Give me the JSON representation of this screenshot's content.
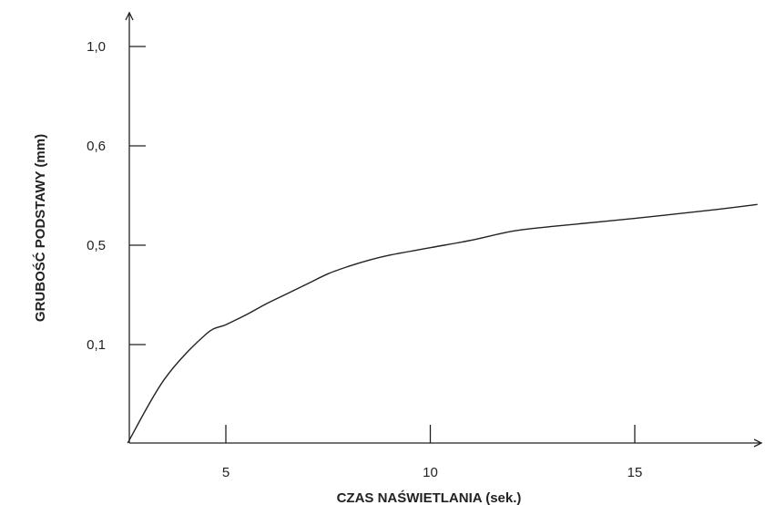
{
  "chart_data": {
    "type": "line",
    "title": "",
    "xlabel": "CZAS NAŚWIETLANIA (sek.)",
    "ylabel": "GRUBOŚĆ PODSTAWY (mm)",
    "x_ticks": [
      "5",
      "10",
      "15"
    ],
    "y_ticks": [
      "0,1",
      "0,5",
      "0,6",
      "1,0"
    ],
    "x_tick_values": [
      5,
      10,
      15
    ],
    "y_tick_values": [
      0.1,
      0.5,
      0.6,
      1.0
    ],
    "grid": false,
    "note": "",
    "series": [
      {
        "values_xy": [
          [
            2.6,
            0.0
          ],
          [
            3.5,
            0.065
          ],
          [
            4.5,
            0.14
          ],
          [
            5.0,
            0.18
          ],
          [
            5.5,
            0.22
          ],
          [
            6.0,
            0.265
          ],
          [
            6.5,
            0.305
          ],
          [
            7.0,
            0.345
          ],
          [
            7.5,
            0.385
          ],
          [
            8.0,
            0.415
          ],
          [
            8.5,
            0.44
          ],
          [
            9.0,
            0.46
          ],
          [
            10.0,
            0.49
          ],
          [
            11.0,
            0.505
          ],
          [
            12.0,
            0.514
          ],
          [
            13.0,
            0.519
          ],
          [
            15.0,
            0.527
          ],
          [
            17.0,
            0.536
          ],
          [
            18.0,
            0.541
          ]
        ]
      }
    ]
  }
}
